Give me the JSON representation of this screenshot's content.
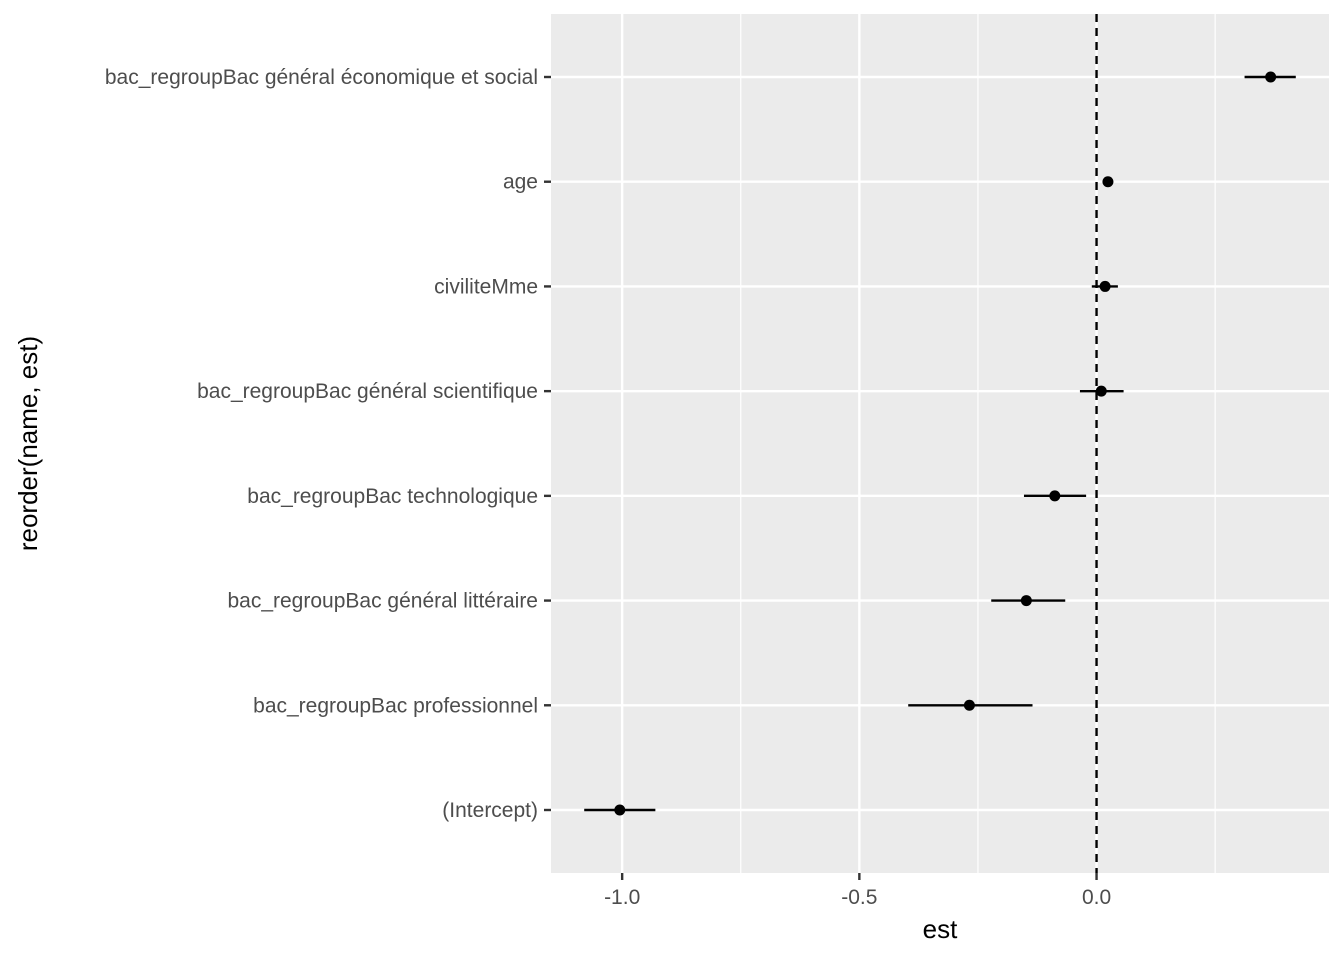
{
  "chart_data": {
    "type": "scatter",
    "subtype": "coefficient-plot-with-error-bars",
    "title": "",
    "xlabel": "est",
    "ylabel": "reorder(name, est)",
    "xlim": [
      -1.15,
      0.49
    ],
    "x_ticks": [
      -1.0,
      -0.5,
      0.0
    ],
    "x_tick_labels": [
      "-1.0",
      "-0.5",
      "0.0"
    ],
    "reference_line": {
      "x": 0,
      "style": "dashed"
    },
    "grid": true,
    "legend": "none",
    "categories": [
      "bac_regroupBac général économique et social",
      "age",
      "civiliteMme",
      "bac_regroupBac général scientifique",
      "bac_regroupBac technologique",
      "bac_regroupBac général littéraire",
      "bac_regroupBac professionnel",
      "(Intercept)"
    ],
    "points": [
      {
        "name": "bac_regroupBac général économique et social",
        "est": 0.367,
        "low": 0.312,
        "high": 0.42
      },
      {
        "name": "age",
        "est": 0.024,
        "low": 0.017,
        "high": 0.031
      },
      {
        "name": "civiliteMme",
        "est": 0.018,
        "low": -0.01,
        "high": 0.045
      },
      {
        "name": "bac_regroupBac général scientifique",
        "est": 0.01,
        "low": -0.035,
        "high": 0.057
      },
      {
        "name": "bac_regroupBac technologique",
        "est": -0.088,
        "low": -0.153,
        "high": -0.022
      },
      {
        "name": "bac_regroupBac général littéraire",
        "est": -0.148,
        "low": -0.222,
        "high": -0.066
      },
      {
        "name": "bac_regroupBac professionnel",
        "est": -0.268,
        "low": -0.397,
        "high": -0.135
      },
      {
        "name": "(Intercept)",
        "est": -1.005,
        "low": -1.08,
        "high": -0.93
      }
    ],
    "colors": {
      "panel": "#ebebeb",
      "grid": "#ffffff",
      "points": "#000000"
    }
  }
}
